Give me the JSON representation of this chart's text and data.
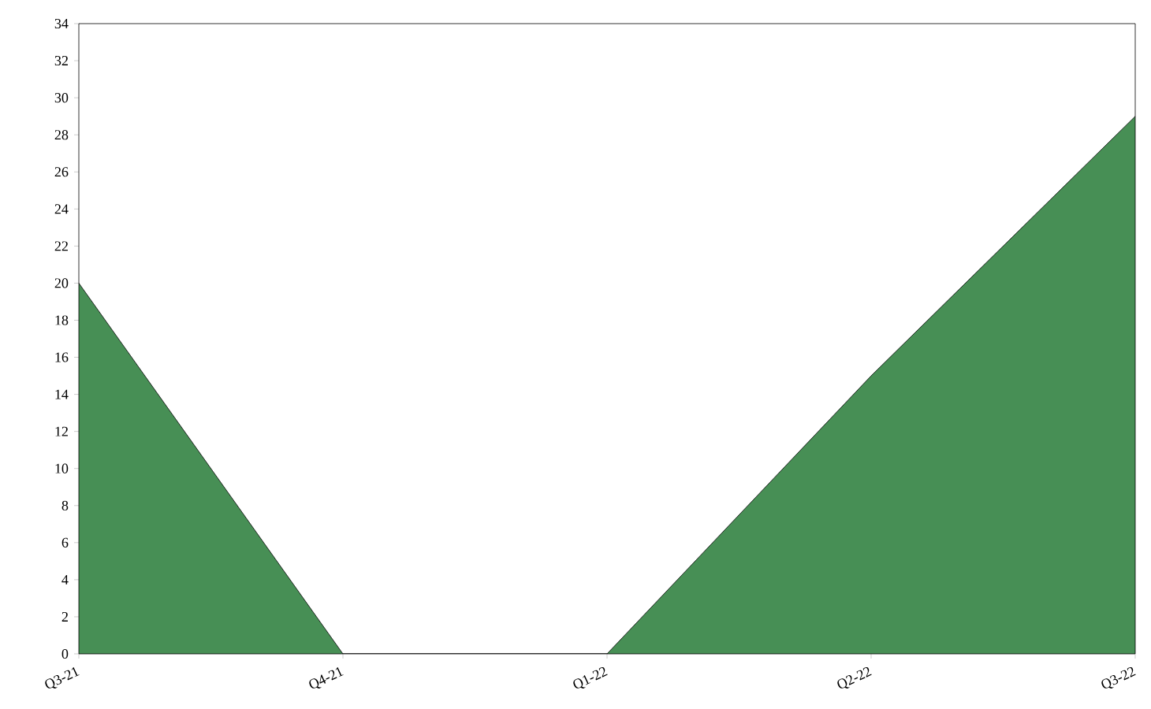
{
  "chart_data": {
    "type": "area",
    "categories": [
      "Q3-21",
      "Q4-21",
      "Q1-22",
      "Q2-22",
      "Q3-22"
    ],
    "values": [
      20,
      0,
      0,
      15,
      29
    ],
    "color": "#478f55",
    "ylim": [
      0,
      34
    ],
    "yticks": [
      0,
      2,
      4,
      6,
      8,
      10,
      12,
      14,
      16,
      18,
      20,
      22,
      24,
      26,
      28,
      30,
      32,
      34
    ]
  }
}
